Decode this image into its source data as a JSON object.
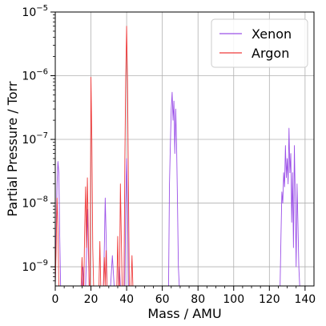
{
  "chart_data": {
    "type": "line",
    "xlabel": "Mass / AMU",
    "ylabel": "Partial Pressure / Torr",
    "xlim": [
      0,
      145
    ],
    "ylim": [
      5e-10,
      1e-05
    ],
    "y_scale": "log",
    "grid": true,
    "legend_position": "top-right",
    "x_ticks": [
      0,
      20,
      40,
      60,
      80,
      100,
      120,
      140
    ],
    "x_tick_labels": [
      "0",
      "20",
      "40",
      "60",
      "80",
      "100",
      "120",
      "140"
    ],
    "y_ticks": [
      1e-09,
      1e-08,
      1e-07,
      1e-06,
      1e-05
    ],
    "y_tick_labels": [
      {
        "base": "10",
        "exp": "−9"
      },
      {
        "base": "10",
        "exp": "−8"
      },
      {
        "base": "10",
        "exp": "−7"
      },
      {
        "base": "10",
        "exp": "−6"
      },
      {
        "base": "10",
        "exp": "−5"
      }
    ],
    "series": [
      {
        "name": "Xenon",
        "color": "#9b50e8",
        "points": [
          [
            0,
            5e-10
          ],
          [
            0.5,
            3e-09
          ],
          [
            1,
            2e-08
          ],
          [
            1.5,
            4.5e-08
          ],
          [
            2,
            3e-08
          ],
          [
            2.5,
            3e-09
          ],
          [
            3,
            5e-10
          ],
          [
            15,
            5e-10
          ],
          [
            15.5,
            1e-09
          ],
          [
            16,
            5e-10
          ],
          [
            17,
            5e-10
          ],
          [
            17.5,
            1.5e-09
          ],
          [
            18,
            8e-09
          ],
          [
            18.5,
            2e-09
          ],
          [
            19,
            5e-10
          ],
          [
            27,
            5e-10
          ],
          [
            27.5,
            2e-09
          ],
          [
            28,
            1.2e-08
          ],
          [
            28.5,
            3e-09
          ],
          [
            29,
            5e-10
          ],
          [
            31,
            5e-10
          ],
          [
            32,
            1.5e-09
          ],
          [
            33,
            5e-10
          ],
          [
            35.5,
            5e-10
          ],
          [
            36,
            1e-09
          ],
          [
            36.5,
            5e-10
          ],
          [
            39,
            5e-10
          ],
          [
            39.5,
            1e-08
          ],
          [
            40,
            5e-08
          ],
          [
            40.5,
            1e-08
          ],
          [
            41,
            5e-10
          ],
          [
            63.5,
            5e-10
          ],
          [
            64,
            2e-08
          ],
          [
            64.5,
            8e-08
          ],
          [
            65,
            3e-07
          ],
          [
            65.5,
            5.5e-07
          ],
          [
            66,
            2e-07
          ],
          [
            66.5,
            4e-07
          ],
          [
            67,
            6e-08
          ],
          [
            67.5,
            3e-07
          ],
          [
            68,
            8e-08
          ],
          [
            68.5,
            1e-08
          ],
          [
            69,
            1e-09
          ],
          [
            69.5,
            5e-10
          ],
          [
            126,
            5e-10
          ],
          [
            126.5,
            3e-09
          ],
          [
            127,
            1.5e-08
          ],
          [
            127.5,
            1e-08
          ],
          [
            128,
            3e-08
          ],
          [
            128.5,
            1.8e-08
          ],
          [
            129,
            8e-08
          ],
          [
            129.5,
            2.5e-08
          ],
          [
            130,
            5e-08
          ],
          [
            130.5,
            2e-08
          ],
          [
            131,
            1.5e-07
          ],
          [
            131.5,
            3e-08
          ],
          [
            132,
            6e-08
          ],
          [
            132.5,
            5e-09
          ],
          [
            133,
            3e-08
          ],
          [
            133.5,
            2e-09
          ],
          [
            134,
            8e-08
          ],
          [
            134.5,
            1.2e-08
          ],
          [
            135,
            1e-09
          ],
          [
            135.5,
            2e-08
          ],
          [
            136,
            5e-09
          ],
          [
            136.5,
            1e-09
          ],
          [
            137,
            5e-10
          ]
        ]
      },
      {
        "name": "Argon",
        "color": "#ef3a3a",
        "points": [
          [
            0,
            5e-10
          ],
          [
            0.5,
            2e-09
          ],
          [
            1,
            1.2e-08
          ],
          [
            1.5,
            4e-09
          ],
          [
            2,
            5e-10
          ],
          [
            14.5,
            5e-10
          ],
          [
            15,
            1.4e-09
          ],
          [
            15.5,
            5e-10
          ],
          [
            16,
            5e-10
          ],
          [
            16.5,
            4e-09
          ],
          [
            17,
            1.8e-08
          ],
          [
            17.5,
            2e-09
          ],
          [
            18,
            2.5e-08
          ],
          [
            18.5,
            4e-09
          ],
          [
            19,
            5e-10
          ],
          [
            19.5,
            5e-10
          ],
          [
            20,
            9.5e-07
          ],
          [
            20.5,
            1e-07
          ],
          [
            21,
            2e-09
          ],
          [
            21.5,
            5e-10
          ],
          [
            24.5,
            5e-10
          ],
          [
            25,
            2.5e-09
          ],
          [
            25.5,
            5e-10
          ],
          [
            27,
            5e-10
          ],
          [
            27.5,
            1.4e-09
          ],
          [
            28,
            5e-10
          ],
          [
            28.5,
            1.8e-09
          ],
          [
            29,
            5e-10
          ],
          [
            34.5,
            5e-10
          ],
          [
            35,
            3e-09
          ],
          [
            35.5,
            5e-10
          ],
          [
            36,
            5e-10
          ],
          [
            36.5,
            2e-08
          ],
          [
            37,
            3e-09
          ],
          [
            37.5,
            5e-10
          ],
          [
            38.5,
            5e-10
          ],
          [
            39,
            5e-08
          ],
          [
            39.5,
            1e-06
          ],
          [
            40,
            6e-06
          ],
          [
            40.5,
            8e-07
          ],
          [
            41,
            2e-08
          ],
          [
            41.5,
            5e-10
          ],
          [
            42.5,
            5e-10
          ],
          [
            43,
            1.5e-09
          ],
          [
            43.5,
            5e-10
          ],
          [
            122.5,
            5e-10
          ],
          [
            123,
            5e-10
          ]
        ]
      }
    ]
  }
}
